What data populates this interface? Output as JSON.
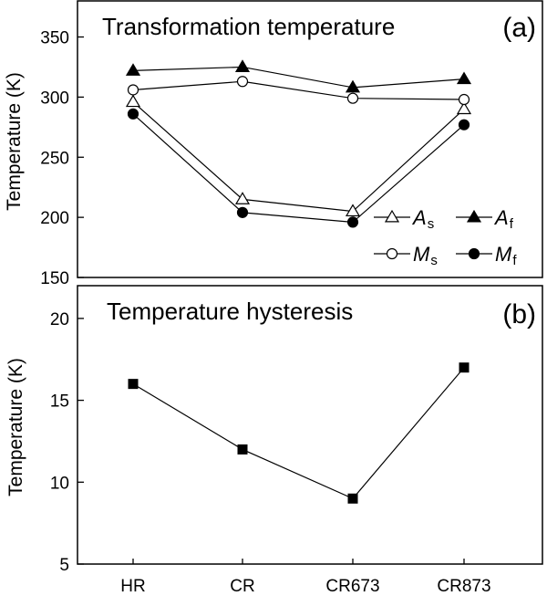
{
  "chart_data": [
    {
      "type": "line",
      "title": "Transformation temperature",
      "panel_label": "(a)",
      "ylabel": "Temperature (K)",
      "categories": [
        "HR",
        "CR",
        "CR673",
        "CR873"
      ],
      "ylim": [
        150,
        380
      ],
      "yticks": [
        150,
        200,
        250,
        300,
        350
      ],
      "grid": false,
      "legend_position": "lower-right",
      "series": [
        {
          "name": "As",
          "name_main": "A",
          "name_sub": "s",
          "marker": "open-triangle",
          "values": [
            296,
            215,
            205,
            290
          ]
        },
        {
          "name": "Af",
          "name_main": "A",
          "name_sub": "f",
          "marker": "filled-triangle",
          "values": [
            322,
            325,
            308,
            315
          ]
        },
        {
          "name": "Ms",
          "name_main": "M",
          "name_sub": "s",
          "marker": "open-circle",
          "values": [
            306,
            313,
            299,
            298
          ]
        },
        {
          "name": "Mf",
          "name_main": "M",
          "name_sub": "f",
          "marker": "filled-circle",
          "values": [
            286,
            204,
            196,
            277
          ]
        }
      ]
    },
    {
      "type": "line",
      "title": "Temperature hysteresis",
      "panel_label": "(b)",
      "ylabel": "Temperature (K)",
      "xlabel": "",
      "categories": [
        "HR",
        "CR",
        "CR673",
        "CR873"
      ],
      "ylim": [
        5,
        22
      ],
      "yticks": [
        5,
        10,
        15,
        20
      ],
      "grid": false,
      "series": [
        {
          "marker": "filled-square",
          "values": [
            16,
            12,
            9,
            17
          ]
        }
      ]
    }
  ]
}
